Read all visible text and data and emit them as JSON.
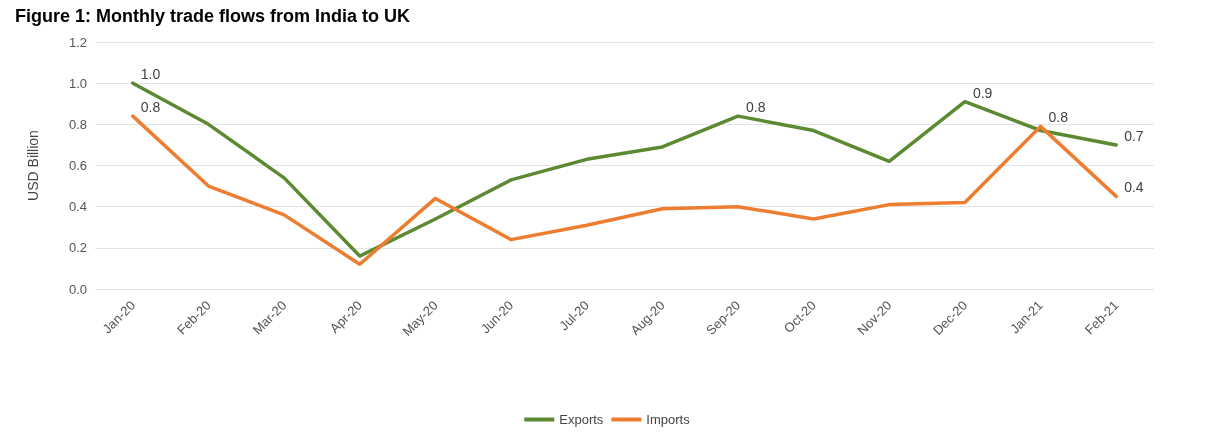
{
  "chart_data": {
    "type": "line",
    "title": "Figure 1: Monthly trade flows from India to UK",
    "ylabel": "USD Billion",
    "categories": [
      "Jan-20",
      "Feb-20",
      "Mar-20",
      "Apr-20",
      "May-20",
      "Jun-20",
      "Jul-20",
      "Aug-20",
      "Sep-20",
      "Oct-20",
      "Nov-20",
      "Dec-20",
      "Jan-21",
      "Feb-21"
    ],
    "series": [
      {
        "name": "Exports",
        "color": "#5b8a32",
        "values": [
          1.0,
          0.8,
          0.54,
          0.16,
          0.34,
          0.53,
          0.63,
          0.69,
          0.84,
          0.77,
          0.62,
          0.91,
          0.77,
          0.7
        ],
        "value_labels": [
          "1.0",
          null,
          null,
          null,
          null,
          null,
          null,
          null,
          "0.8",
          null,
          null,
          "0.9",
          null,
          "0.7"
        ]
      },
      {
        "name": "Imports",
        "color": "#ed7d31",
        "values": [
          0.84,
          0.5,
          0.36,
          0.12,
          0.44,
          0.24,
          0.31,
          0.39,
          0.4,
          0.34,
          0.41,
          0.42,
          0.79,
          0.45
        ],
        "value_labels": [
          "0.8",
          null,
          null,
          null,
          null,
          null,
          null,
          null,
          null,
          null,
          null,
          null,
          "0.8",
          "0.4"
        ]
      }
    ],
    "ylim": [
      0,
      1.2
    ],
    "yticks": [
      {
        "value": 0,
        "label": "0.0"
      },
      {
        "value": 0.2,
        "label": "0.2"
      },
      {
        "value": 0.4,
        "label": "0.4"
      },
      {
        "value": 0.6,
        "label": "0.6"
      },
      {
        "value": 0.8,
        "label": "0.8"
      },
      {
        "value": 1.0,
        "label": "1.0"
      },
      {
        "value": 1.2,
        "label": "1.2"
      }
    ],
    "grid": "y",
    "legend": "bottom",
    "marker": "none",
    "line_style": "solid"
  }
}
